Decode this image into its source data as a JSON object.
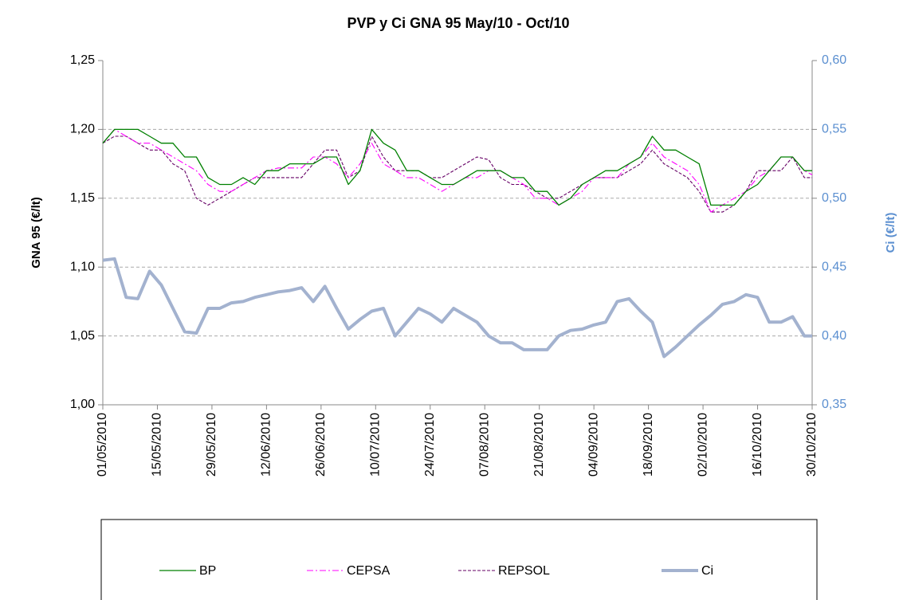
{
  "chart_data": {
    "type": "line",
    "title": "PVP y Ci GNA  95  May/10 -   Oct/10",
    "y_label": "GNA 95 (€/lt)",
    "y2_label": "Ci (€/lt)",
    "x": [
      "01/05/2010",
      "04/05/2010",
      "07/05/2010",
      "10/05/2010",
      "13/05/2010",
      "16/05/2010",
      "19/05/2010",
      "22/05/2010",
      "25/05/2010",
      "28/05/2010",
      "31/05/2010",
      "03/06/2010",
      "06/06/2010",
      "09/06/2010",
      "12/06/2010",
      "15/06/2010",
      "18/06/2010",
      "21/06/2010",
      "24/06/2010",
      "27/06/2010",
      "30/06/2010",
      "03/07/2010",
      "06/07/2010",
      "09/07/2010",
      "12/07/2010",
      "15/07/2010",
      "18/07/2010",
      "21/07/2010",
      "24/07/2010",
      "27/07/2010",
      "30/07/2010",
      "02/08/2010",
      "05/08/2010",
      "08/08/2010",
      "11/08/2010",
      "14/08/2010",
      "17/08/2010",
      "20/08/2010",
      "23/08/2010",
      "26/08/2010",
      "29/08/2010",
      "01/09/2010",
      "04/09/2010",
      "07/09/2010",
      "10/09/2010",
      "13/09/2010",
      "16/09/2010",
      "19/09/2010",
      "22/09/2010",
      "25/09/2010",
      "28/09/2010",
      "01/10/2010",
      "04/10/2010",
      "07/10/2010",
      "10/10/2010",
      "13/10/2010",
      "16/10/2010",
      "19/10/2010",
      "22/10/2010",
      "25/10/2010",
      "28/10/2010",
      "30/10/2010"
    ],
    "xlim": [
      "01/05/2010",
      "30/10/2010"
    ],
    "xticks": [
      "01/05/2010",
      "15/05/2010",
      "29/05/2010",
      "12/06/2010",
      "26/06/2010",
      "10/07/2010",
      "24/07/2010",
      "07/08/2010",
      "21/08/2010",
      "04/09/2010",
      "18/09/2010",
      "02/10/2010",
      "16/10/2010",
      "30/10/2010"
    ],
    "ylim": [
      1.0,
      1.25
    ],
    "yticks": [
      {
        "value": 1.0,
        "label": "1,00"
      },
      {
        "value": 1.05,
        "label": "1,05"
      },
      {
        "value": 1.1,
        "label": "1,10"
      },
      {
        "value": 1.15,
        "label": "1,15"
      },
      {
        "value": 1.2,
        "label": "1,20"
      },
      {
        "value": 1.25,
        "label": "1,25"
      }
    ],
    "y2lim": [
      0.35,
      0.6
    ],
    "y2ticks": [
      {
        "value": 0.35,
        "label": "0,35"
      },
      {
        "value": 0.4,
        "label": "0,40"
      },
      {
        "value": 0.45,
        "label": "0,45"
      },
      {
        "value": 0.5,
        "label": "0,50"
      },
      {
        "value": 0.55,
        "label": "0,55"
      },
      {
        "value": 0.6,
        "label": "0,60"
      }
    ],
    "grid": true,
    "legend": "bottom",
    "series": [
      {
        "name": "BP",
        "color": "#008000",
        "dash": "solid",
        "width": 1.3,
        "values": [
          1.19,
          1.2,
          1.2,
          1.2,
          1.195,
          1.19,
          1.19,
          1.18,
          1.18,
          1.165,
          1.16,
          1.16,
          1.165,
          1.16,
          1.17,
          1.17,
          1.175,
          1.175,
          1.175,
          1.18,
          1.18,
          1.16,
          1.17,
          1.2,
          1.19,
          1.185,
          1.17,
          1.17,
          1.165,
          1.16,
          1.16,
          1.165,
          1.17,
          1.17,
          1.17,
          1.165,
          1.165,
          1.155,
          1.155,
          1.145,
          1.15,
          1.16,
          1.165,
          1.17,
          1.17,
          1.175,
          1.18,
          1.195,
          1.185,
          1.185,
          1.18,
          1.175,
          1.145,
          1.145,
          1.145,
          1.155,
          1.16,
          1.17,
          1.18,
          1.18,
          1.17,
          1.17
        ]
      },
      {
        "name": "CEPSA",
        "color": "#ff00ff",
        "dash": "dashdot",
        "width": 1.1,
        "values": [
          1.19,
          1.2,
          1.195,
          1.19,
          1.19,
          1.185,
          1.18,
          1.175,
          1.17,
          1.16,
          1.155,
          1.155,
          1.16,
          1.165,
          1.17,
          1.172,
          1.172,
          1.172,
          1.18,
          1.18,
          1.175,
          1.165,
          1.175,
          1.19,
          1.175,
          1.17,
          1.165,
          1.165,
          1.16,
          1.155,
          1.16,
          1.165,
          1.165,
          1.17,
          1.17,
          1.165,
          1.16,
          1.15,
          1.15,
          1.145,
          1.15,
          1.155,
          1.165,
          1.165,
          1.165,
          1.175,
          1.18,
          1.19,
          1.18,
          1.175,
          1.17,
          1.16,
          1.14,
          1.145,
          1.15,
          1.155,
          1.165,
          1.17,
          1.18,
          1.18,
          1.17,
          1.167
        ]
      },
      {
        "name": "REPSOL",
        "color": "#660066",
        "dash": "dashed",
        "width": 1.1,
        "values": [
          1.19,
          1.195,
          1.195,
          1.19,
          1.185,
          1.185,
          1.175,
          1.17,
          1.15,
          1.145,
          1.15,
          1.155,
          1.16,
          1.165,
          1.165,
          1.165,
          1.165,
          1.165,
          1.175,
          1.185,
          1.185,
          1.165,
          1.17,
          1.195,
          1.18,
          1.17,
          1.17,
          1.17,
          1.165,
          1.165,
          1.17,
          1.175,
          1.18,
          1.178,
          1.165,
          1.16,
          1.16,
          1.155,
          1.15,
          1.15,
          1.155,
          1.16,
          1.165,
          1.165,
          1.165,
          1.17,
          1.175,
          1.185,
          1.175,
          1.17,
          1.165,
          1.155,
          1.14,
          1.14,
          1.145,
          1.155,
          1.17,
          1.17,
          1.17,
          1.18,
          1.165,
          1.165
        ]
      },
      {
        "name": "Ci",
        "color": "#a3b2cf",
        "dash": "solid",
        "width": 4,
        "axis": "y2",
        "values": [
          0.455,
          0.456,
          0.428,
          0.427,
          0.447,
          0.437,
          0.42,
          0.403,
          0.402,
          0.42,
          0.42,
          0.424,
          0.425,
          0.428,
          0.43,
          0.432,
          0.433,
          0.435,
          0.425,
          0.436,
          0.42,
          0.405,
          0.412,
          0.418,
          0.42,
          0.4,
          0.41,
          0.42,
          0.416,
          0.41,
          0.42,
          0.415,
          0.41,
          0.4,
          0.395,
          0.395,
          0.39,
          0.39,
          0.39,
          0.4,
          0.404,
          0.405,
          0.408,
          0.41,
          0.425,
          0.427,
          0.418,
          0.41,
          0.385,
          0.392,
          0.4,
          0.408,
          0.415,
          0.423,
          0.425,
          0.43,
          0.428,
          0.41,
          0.41,
          0.414,
          0.4,
          0.4
        ]
      }
    ]
  }
}
